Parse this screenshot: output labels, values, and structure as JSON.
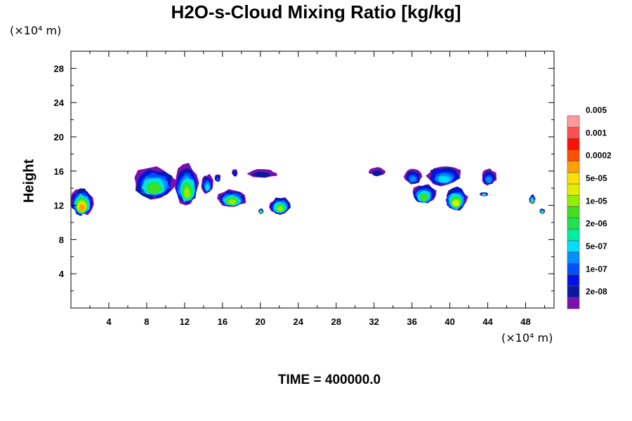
{
  "chart_data": {
    "type": "heatmap",
    "title": "H2O-s-Cloud Mixing Ratio [kg/kg]",
    "ylabel": "Height",
    "x_unit": "(×10⁴ m)",
    "y_unit": "(×10⁴ m)",
    "xlim": [
      0,
      51
    ],
    "ylim": [
      0,
      30
    ],
    "x_ticks": [
      4,
      8,
      12,
      16,
      20,
      24,
      28,
      32,
      36,
      40,
      44,
      48
    ],
    "y_ticks": [
      4,
      8,
      12,
      16,
      20,
      24,
      28
    ],
    "grid": false,
    "colorbar": {
      "position": "right",
      "colors": [
        "#7a10b0",
        "#0a1aa0",
        "#0010e8",
        "#0050ff",
        "#0090ff",
        "#00ddff",
        "#00f0a0",
        "#20e050",
        "#40e020",
        "#90f000",
        "#e0f000",
        "#ffe000",
        "#ffa000",
        "#ff5000",
        "#ff1000",
        "#ff5050",
        "#ff9a9a"
      ],
      "labels": [
        "2e-08",
        "1e-07",
        "5e-07",
        "2e-06",
        "1e-05",
        "5e-05",
        "0.0002",
        "0.001",
        "0.005"
      ]
    },
    "cloud_regions": [
      {
        "x": [
          0,
          2.3
        ],
        "y": [
          10.8,
          14
        ],
        "max_level": 12
      },
      {
        "x": [
          6.5,
          11
        ],
        "y": [
          12.8,
          16.5
        ],
        "max_level": 8
      },
      {
        "x": [
          11,
          13.5
        ],
        "y": [
          12,
          16.8
        ],
        "max_level": 9
      },
      {
        "x": [
          13.8,
          15
        ],
        "y": [
          13.4,
          15.6
        ],
        "max_level": 5
      },
      {
        "x": [
          15.2,
          15.8
        ],
        "y": [
          14.8,
          15.6
        ],
        "max_level": 3
      },
      {
        "x": [
          15.5,
          18.5
        ],
        "y": [
          11.8,
          13.8
        ],
        "max_level": 9
      },
      {
        "x": [
          17,
          17.6
        ],
        "y": [
          15.4,
          16.2
        ],
        "max_level": 2
      },
      {
        "x": [
          18.5,
          21.8
        ],
        "y": [
          15.2,
          16.2
        ],
        "max_level": 1
      },
      {
        "x": [
          19.8,
          20.3
        ],
        "y": [
          11,
          11.6
        ],
        "max_level": 8
      },
      {
        "x": [
          21,
          23.2
        ],
        "y": [
          11,
          13
        ],
        "max_level": 9
      },
      {
        "x": [
          31.5,
          33.2
        ],
        "y": [
          15.4,
          16.4
        ],
        "max_level": 1
      },
      {
        "x": [
          35.2,
          37
        ],
        "y": [
          14.5,
          16.2
        ],
        "max_level": 4
      },
      {
        "x": [
          36,
          38.5
        ],
        "y": [
          12.2,
          14.5
        ],
        "max_level": 8
      },
      {
        "x": [
          37.5,
          41.3
        ],
        "y": [
          14.3,
          16.7
        ],
        "max_level": 5
      },
      {
        "x": [
          39.5,
          41.8
        ],
        "y": [
          11.4,
          14.2
        ],
        "max_level": 10
      },
      {
        "x": [
          43.3,
          44.9
        ],
        "y": [
          14.4,
          16.2
        ],
        "max_level": 4
      },
      {
        "x": [
          43.2,
          44
        ],
        "y": [
          13.1,
          13.5
        ],
        "max_level": 6
      },
      {
        "x": [
          48.4,
          49
        ],
        "y": [
          12.2,
          13.2
        ],
        "max_level": 8
      },
      {
        "x": [
          49.5,
          50
        ],
        "y": [
          11,
          11.6
        ],
        "max_level": 8
      }
    ]
  },
  "footer": {
    "time_label": "TIME = 400000.0"
  }
}
